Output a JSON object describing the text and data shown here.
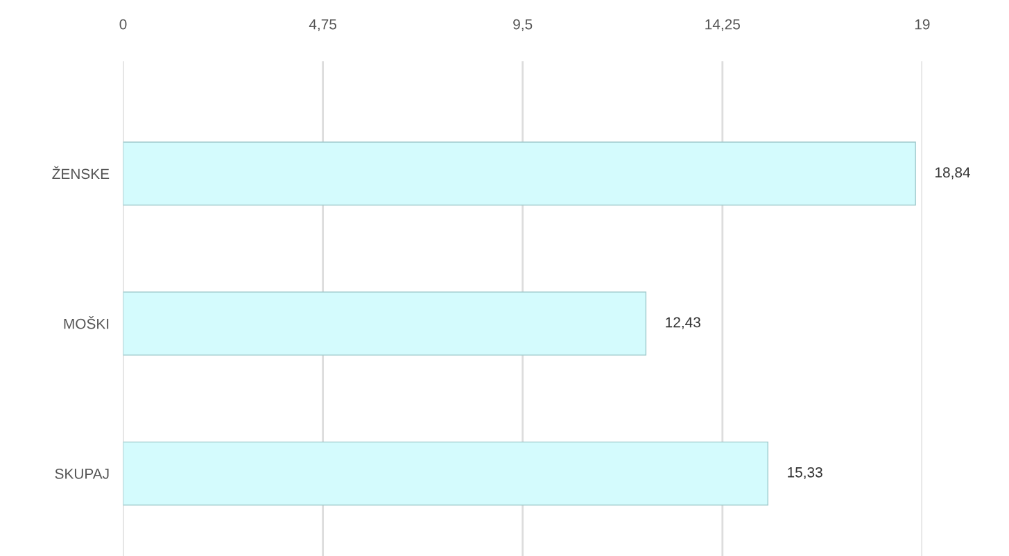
{
  "chart_data": {
    "type": "bar",
    "orientation": "horizontal",
    "categories": [
      "ŽENSKE",
      "MOŠKI",
      "SKUPAJ"
    ],
    "values": [
      18.84,
      12.43,
      15.33
    ],
    "value_labels": [
      "18,84",
      "12,43",
      "15,33"
    ],
    "color": "#d4fbfd",
    "xlim": [
      0,
      19
    ],
    "xticks": [
      0,
      {
        "value": 4.75,
        "label": "4,75"
      },
      {
        "value": 9.5,
        "label": "9,5"
      },
      {
        "value": 14.25,
        "label": "14,25"
      },
      19
    ],
    "grid": "x",
    "legend": false
  }
}
